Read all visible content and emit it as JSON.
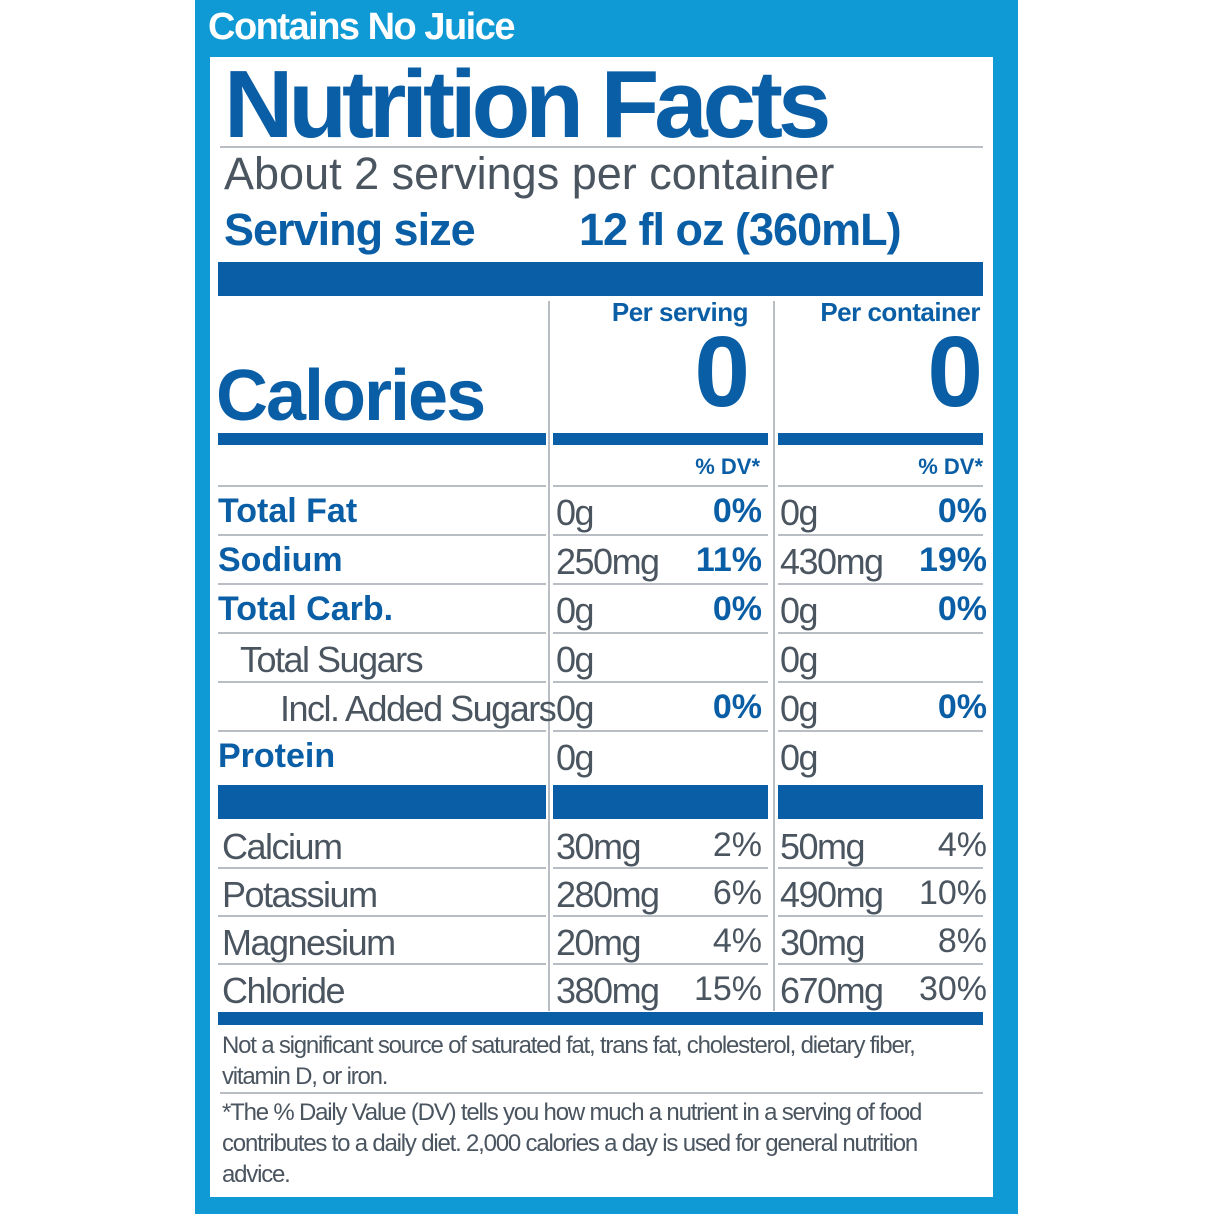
{
  "header_note": "Contains No Juice",
  "title": "Nutrition Facts",
  "servings_per_container": "About 2 servings per container",
  "serving_size": {
    "label": "Serving size",
    "value": "12 fl oz (360mL)"
  },
  "columns": [
    "Per serving",
    "Per container"
  ],
  "calories": {
    "label": "Calories",
    "per_serving": "0",
    "per_container": "0"
  },
  "dv_header": "% DV*",
  "nutrients": [
    {
      "label": "Total Fat",
      "bold": true,
      "indent": 0,
      "serving_amount": "0g",
      "serving_dv": "0%",
      "container_amount": "0g",
      "container_dv": "0%"
    },
    {
      "label": "Sodium",
      "bold": true,
      "indent": 0,
      "serving_amount": "250mg",
      "serving_dv": "11%",
      "container_amount": "430mg",
      "container_dv": "19%"
    },
    {
      "label": "Total Carb.",
      "bold": true,
      "indent": 0,
      "serving_amount": "0g",
      "serving_dv": "0%",
      "container_amount": "0g",
      "container_dv": "0%"
    },
    {
      "label": "Total Sugars",
      "bold": false,
      "indent": 1,
      "serving_amount": "0g",
      "serving_dv": "",
      "container_amount": "0g",
      "container_dv": ""
    },
    {
      "label": "Incl. Added Sugars",
      "bold": false,
      "indent": 2,
      "serving_amount": "0g",
      "serving_dv": "0%",
      "container_amount": "0g",
      "container_dv": "0%"
    },
    {
      "label": "Protein",
      "bold": true,
      "indent": 0,
      "serving_amount": "0g",
      "serving_dv": "",
      "container_amount": "0g",
      "container_dv": ""
    }
  ],
  "minerals": [
    {
      "label": "Calcium",
      "serving_amount": "30mg",
      "serving_dv": "2%",
      "container_amount": "50mg",
      "container_dv": "4%"
    },
    {
      "label": "Potassium",
      "serving_amount": "280mg",
      "serving_dv": "6%",
      "container_amount": "490mg",
      "container_dv": "10%"
    },
    {
      "label": "Magnesium",
      "serving_amount": "20mg",
      "serving_dv": "4%",
      "container_amount": "30mg",
      "container_dv": "8%"
    },
    {
      "label": "Chloride",
      "serving_amount": "380mg",
      "serving_dv": "15%",
      "container_amount": "670mg",
      "container_dv": "30%"
    }
  ],
  "footnote_1": "Not a significant source of saturated fat, trans fat, cholesterol, dietary fiber, vitamin D, or iron.",
  "footnote_2": "*The % Daily Value (DV) tells you how much a nutrient in a serving of food contributes to a daily diet. 2,000 calories a day is used for general nutrition advice.",
  "colors": {
    "background": "#0f9ad5",
    "label_blue": "#0a5ea6",
    "text_grey": "#4a5560"
  }
}
